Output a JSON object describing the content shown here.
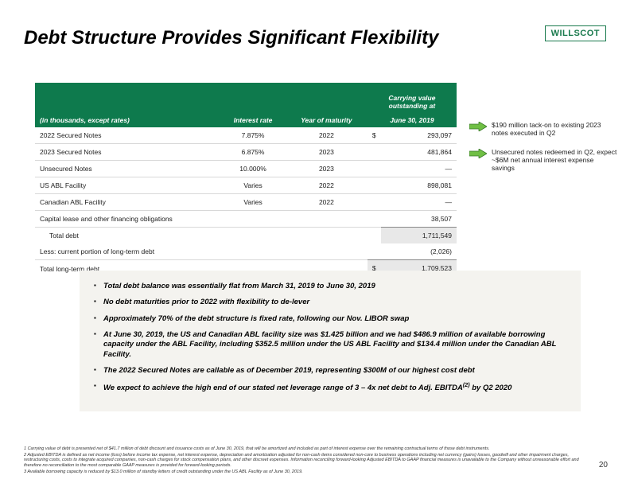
{
  "title": "Debt Structure Provides Significant Flexibility",
  "logo": "WILLSCOT",
  "page_number": "20",
  "table": {
    "header_note_line1": "Carrying value",
    "header_note_line2": "outstanding at",
    "col_desc": "(in thousands, except rates)",
    "col_rate": "Interest rate",
    "col_maturity": "Year of maturity",
    "col_date": "June 30, 2019",
    "rows": [
      {
        "label": "2022 Secured Notes",
        "rate": "7.875%",
        "maturity": "2022",
        "currency": "$",
        "value": "293,097"
      },
      {
        "label": "2023 Secured Notes",
        "rate": "6.875%",
        "maturity": "2023",
        "currency": "",
        "value": "481,864"
      },
      {
        "label": "Unsecured Notes",
        "rate": "10.000%",
        "maturity": "2023",
        "currency": "",
        "value": "—"
      },
      {
        "label": "US ABL Facility",
        "rate": "Varies",
        "maturity": "2022",
        "currency": "",
        "value": "898,081"
      },
      {
        "label": "Canadian ABL Facility",
        "rate": "Varies",
        "maturity": "2022",
        "currency": "",
        "value": "—"
      },
      {
        "label": "Capital lease and other financing obligations",
        "rate": "",
        "maturity": "",
        "currency": "",
        "value": "38,507"
      }
    ],
    "total_debt_label": "Total debt",
    "total_debt_value": "1,711,549",
    "less_label": "Less: current portion of long-term debt",
    "less_value": "(2,026)",
    "total_lt_label": "Total long-term debt",
    "total_lt_currency": "$",
    "total_lt_value": "1,709,523"
  },
  "callouts": [
    "$190 million tack-on to existing 2023 notes executed in Q2",
    "Unsecured notes redeemed in Q2, expect ~$6M net annual interest expense savings"
  ],
  "bullets": [
    "Total debt balance was essentially flat from March 31, 2019 to June 30, 2019",
    "No debt maturities prior to 2022 with flexibility to de-lever",
    "Approximately 70% of the debt structure is fixed rate, following our Nov. LIBOR swap",
    "At June 30, 2019, the US and Canadian ABL facility size was $1.425 billion and we had $486.9 million of available borrowing capacity under the ABL Facility, including $352.5 million under the US ABL Facility and $134.4 million under the Canadian ABL Facility.",
    "The 2022 Secured Notes are callable as of December 2019, representing $300M of our highest cost debt",
    "We expect to achieve the high end of our stated net leverage range of 3 – 4x net debt to Adj. EBITDA(2) by Q2 2020"
  ],
  "footnotes": [
    "1 Carrying value of debt is presented net of $41.7 million of debt discount and issuance costs as of June 30, 2019, that will be amortized and included as part of interest expense over the remaining contractual terms of those debt instruments.",
    "2 Adjusted EBITDA is defined as net income (loss) before income tax expense, net interest expense, depreciation and amortization adjusted for non-cash items considered non-core to business operations including net currency (gains) losses, goodwill and other impairment charges, restructuring costs, costs to integrate acquired companies, non-cash charges for stock compensation plans, and other discreet expenses. Information reconciling forward-looking Adjusted EBITDA to GAAP financial measures is unavailable to the Company without unreasonable effort and therefore no reconciliation to the most comparable GAAP measures is provided for forward-looking periods.",
    "3 Available borrowing capacity is reduced by $13.0 million of standby letters of credit outstanding under the US ABL Facility as of June 30, 2019."
  ],
  "colors": {
    "header_green": "#0e7a4d",
    "arrow_fill": "#6fbf44",
    "arrow_stroke": "#3a7a2a",
    "bullets_bg": "#f4f3ef"
  }
}
